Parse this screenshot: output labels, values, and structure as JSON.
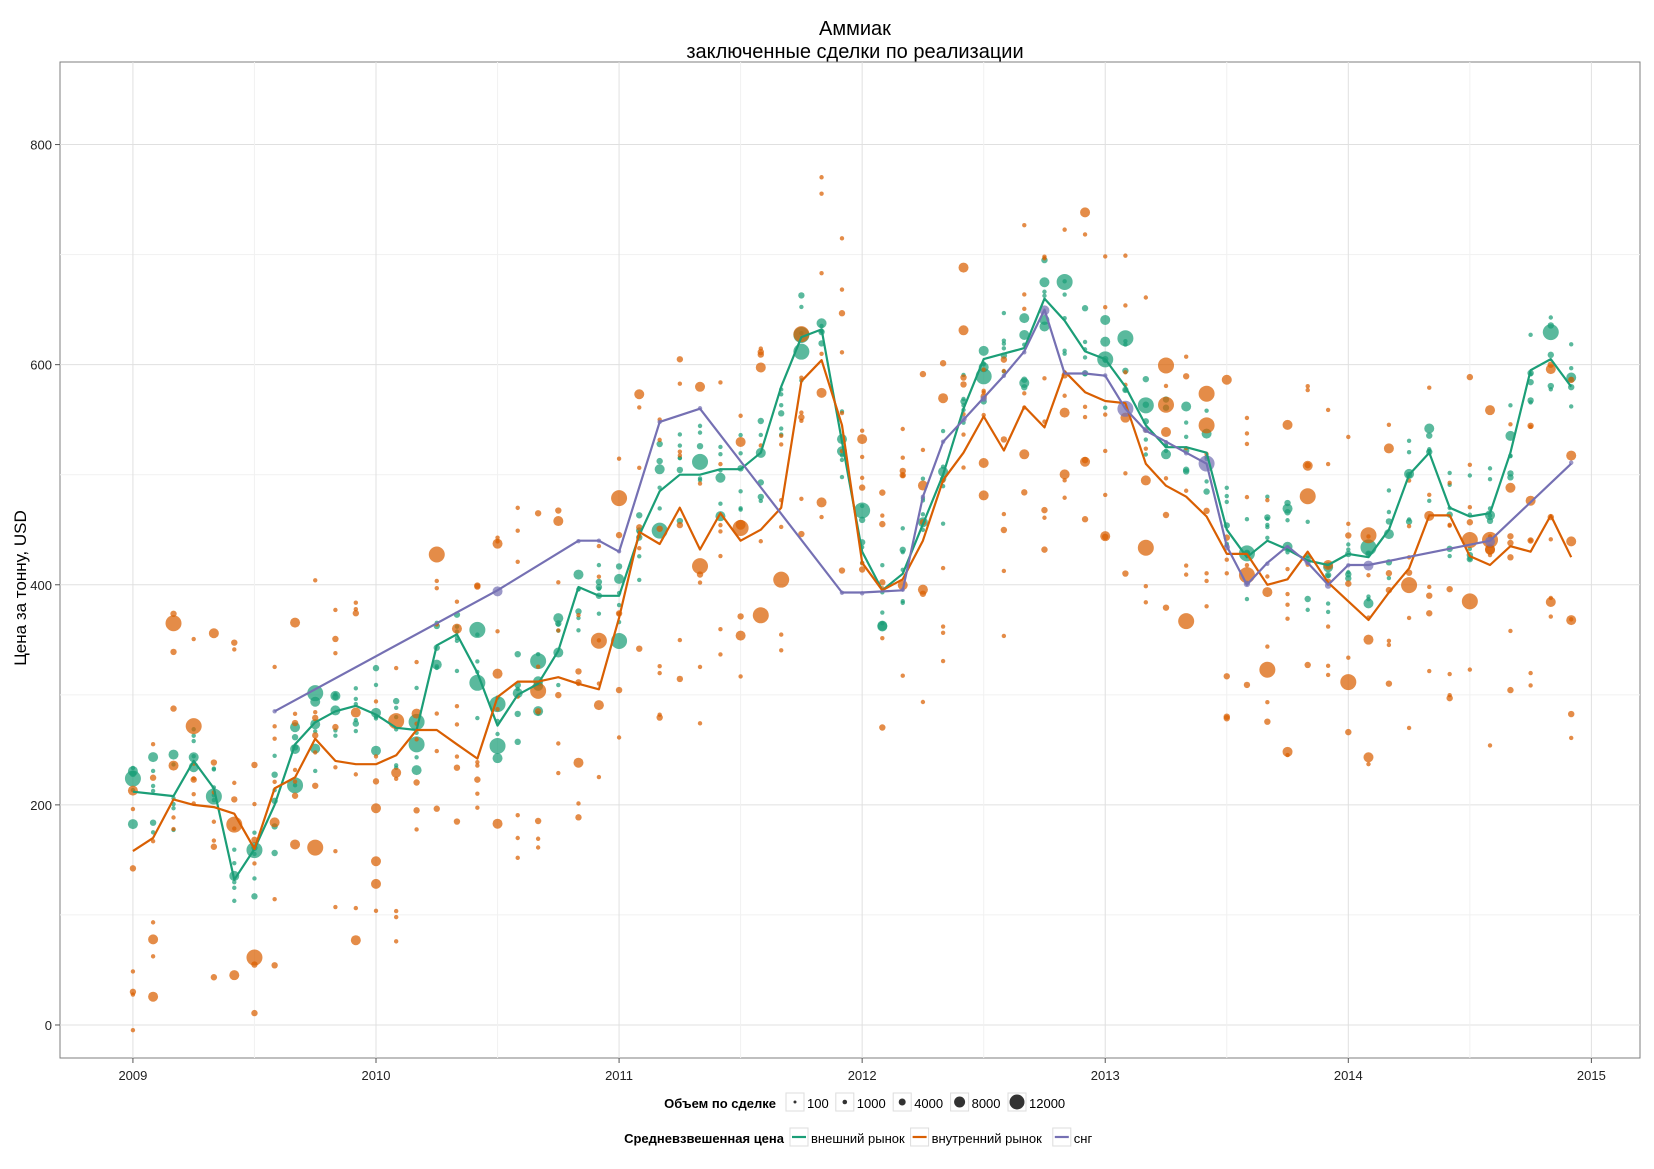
{
  "chart_data": {
    "type": "scatter",
    "title": "Аммиак",
    "subtitle": "заключенные сделки по реализации",
    "xlabel": "",
    "ylabel": "Цена за тонну, USD",
    "xlim": [
      2008.7,
      2015.2
    ],
    "ylim": [
      -30,
      875
    ],
    "x_ticks": [
      "2009",
      "2010",
      "2011",
      "2012",
      "2013",
      "2014",
      "2015"
    ],
    "y_ticks": [
      "0",
      "200",
      "400",
      "600",
      "800"
    ],
    "grid": true,
    "legend_position": "bottom",
    "colors": {
      "green": "#1b9e77",
      "orange": "#d95f02",
      "purple": "#7570b3"
    },
    "size_legend": {
      "title": "Объем по сделке",
      "entries": [
        "100",
        "1000",
        "4000",
        "8000",
        "12000"
      ]
    },
    "line_legend": {
      "title": "Средневзвешенная цена",
      "entries": [
        "внешний рынок",
        "внутренний рынок",
        "снг"
      ]
    },
    "lines": [
      {
        "name": "внешний рынок",
        "color": "#1b9e77",
        "x": [
          2009.0,
          2009.083,
          2009.167,
          2009.25,
          2009.333,
          2009.417,
          2009.5,
          2009.583,
          2009.667,
          2009.75,
          2009.833,
          2009.917,
          2010.0,
          2010.083,
          2010.167,
          2010.25,
          2010.333,
          2010.417,
          2010.5,
          2010.583,
          2010.667,
          2010.75,
          2010.833,
          2010.917,
          2011.0,
          2011.083,
          2011.167,
          2011.25,
          2011.333,
          2011.417,
          2011.5,
          2011.583,
          2011.667,
          2011.75,
          2011.833,
          2011.917,
          2012.0,
          2012.083,
          2012.167,
          2012.25,
          2012.333,
          2012.417,
          2012.5,
          2012.583,
          2012.667,
          2012.75,
          2012.833,
          2012.917,
          2013.0,
          2013.083,
          2013.167,
          2013.25,
          2013.333,
          2013.417,
          2013.5,
          2013.583,
          2013.667,
          2013.75,
          2013.833,
          2013.917,
          2014.0,
          2014.083,
          2014.167,
          2014.25,
          2014.333,
          2014.417,
          2014.5,
          2014.583,
          2014.667,
          2014.75,
          2014.833,
          2014.917
        ],
        "y": [
          212,
          210,
          208,
          240,
          215,
          132,
          160,
          200,
          255,
          275,
          285,
          290,
          282,
          270,
          268,
          345,
          355,
          320,
          272,
          300,
          310,
          340,
          398,
          390,
          390,
          445,
          485,
          500,
          500,
          505,
          505,
          520,
          580,
          625,
          632,
          530,
          430,
          395,
          410,
          455,
          500,
          560,
          605,
          610,
          615,
          660,
          640,
          612,
          605,
          580,
          545,
          525,
          525,
          520,
          450,
          425,
          440,
          432,
          422,
          418,
          428,
          425,
          450,
          500,
          520,
          470,
          462,
          465,
          520,
          595,
          605,
          580
        ]
      },
      {
        "name": "внутренний рынок",
        "color": "#d95f02",
        "x": [
          2009.0,
          2009.083,
          2009.167,
          2009.25,
          2009.333,
          2009.417,
          2009.5,
          2009.583,
          2009.667,
          2009.75,
          2009.833,
          2009.917,
          2010.0,
          2010.083,
          2010.167,
          2010.25,
          2010.333,
          2010.417,
          2010.5,
          2010.583,
          2010.667,
          2010.75,
          2010.833,
          2010.917,
          2011.0,
          2011.083,
          2011.167,
          2011.25,
          2011.333,
          2011.417,
          2011.5,
          2011.583,
          2011.667,
          2011.75,
          2011.833,
          2011.917,
          2012.0,
          2012.083,
          2012.167,
          2012.25,
          2012.333,
          2012.417,
          2012.5,
          2012.583,
          2012.667,
          2012.75,
          2012.833,
          2012.917,
          2013.0,
          2013.083,
          2013.167,
          2013.25,
          2013.333,
          2013.417,
          2013.5,
          2013.583,
          2013.667,
          2013.75,
          2013.833,
          2013.917,
          2014.0,
          2014.083,
          2014.167,
          2014.25,
          2014.333,
          2014.417,
          2014.5,
          2014.583,
          2014.667,
          2014.75,
          2014.833,
          2014.917
        ],
        "y": [
          158,
          170,
          205,
          200,
          198,
          192,
          160,
          215,
          225,
          260,
          240,
          237,
          237,
          245,
          268,
          268,
          255,
          242,
          298,
          312,
          312,
          316,
          310,
          305,
          370,
          448,
          437,
          470,
          432,
          465,
          440,
          450,
          470,
          585,
          604,
          545,
          420,
          395,
          405,
          440,
          495,
          520,
          553,
          522,
          562,
          543,
          594,
          575,
          567,
          565,
          510,
          490,
          480,
          462,
          428,
          428,
          400,
          405,
          430,
          402,
          385,
          368,
          393,
          415,
          463,
          463,
          426,
          418,
          435,
          430,
          463,
          425
        ]
      },
      {
        "name": "снг",
        "color": "#7570b3",
        "x": [
          2009.583,
          2010.5,
          2010.833,
          2010.917,
          2011.0,
          2011.167,
          2011.333,
          2011.917,
          2012.0,
          2012.167,
          2012.25,
          2012.333,
          2012.417,
          2012.5,
          2012.583,
          2012.667,
          2012.75,
          2012.833,
          2012.917,
          2013.0,
          2013.083,
          2013.167,
          2013.25,
          2013.333,
          2013.417,
          2013.5,
          2013.583,
          2013.667,
          2013.75,
          2013.833,
          2013.917,
          2014.0,
          2014.083,
          2014.583,
          2014.917
        ],
        "y": [
          285,
          395,
          440,
          440,
          430,
          548,
          560,
          393,
          393,
          395,
          480,
          530,
          550,
          570,
          590,
          612,
          650,
          592,
          592,
          590,
          560,
          540,
          530,
          520,
          510,
          435,
          400,
          420,
          435,
          420,
          400,
          418,
          418,
          440,
          510
        ]
      }
    ]
  }
}
